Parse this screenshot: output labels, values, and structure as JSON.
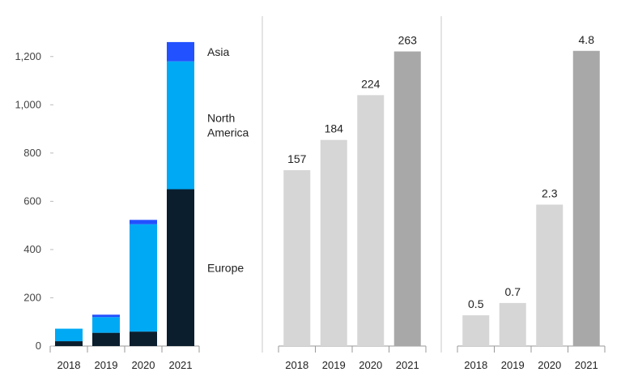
{
  "chart_data": [
    {
      "type": "bar",
      "stacked": true,
      "categories": [
        "2018",
        "2019",
        "2020",
        "2021"
      ],
      "series": [
        {
          "name": "Europe",
          "color": "#0a1e2e",
          "values": [
            20,
            55,
            60,
            650
          ]
        },
        {
          "name": "North America",
          "color": "#00a9f4",
          "values": [
            52,
            65,
            445,
            530
          ]
        },
        {
          "name": "Asia",
          "color": "#2251ff",
          "values": [
            0,
            10,
            18,
            80
          ]
        }
      ],
      "ylim": [
        0,
        1300
      ],
      "yticks": [
        0,
        200,
        400,
        600,
        800,
        "1,000",
        "1,200"
      ],
      "ytick_values": [
        0,
        200,
        400,
        600,
        800,
        1000,
        1200
      ],
      "legend_labels": [
        "Asia",
        "North\nAmerica",
        "Europe"
      ],
      "grid": false,
      "legend_position": "right"
    },
    {
      "type": "bar",
      "categories": [
        "2018",
        "2019",
        "2020",
        "2021"
      ],
      "values": [
        157,
        184,
        224,
        263
      ],
      "data_labels": [
        "157",
        "184",
        "224",
        "263"
      ],
      "colors": [
        "#d6d6d6",
        "#d6d6d6",
        "#d6d6d6",
        "#a8a8a8"
      ],
      "ylim": [
        0,
        280
      ]
    },
    {
      "type": "bar",
      "categories": [
        "2018",
        "2019",
        "2020",
        "2021"
      ],
      "values": [
        0.5,
        0.7,
        2.3,
        4.8
      ],
      "data_labels": [
        "0.5",
        "0.7",
        "2.3",
        "4.8"
      ],
      "colors": [
        "#d6d6d6",
        "#d6d6d6",
        "#d6d6d6",
        "#a8a8a8"
      ],
      "ylim": [
        0,
        5.1
      ]
    }
  ]
}
